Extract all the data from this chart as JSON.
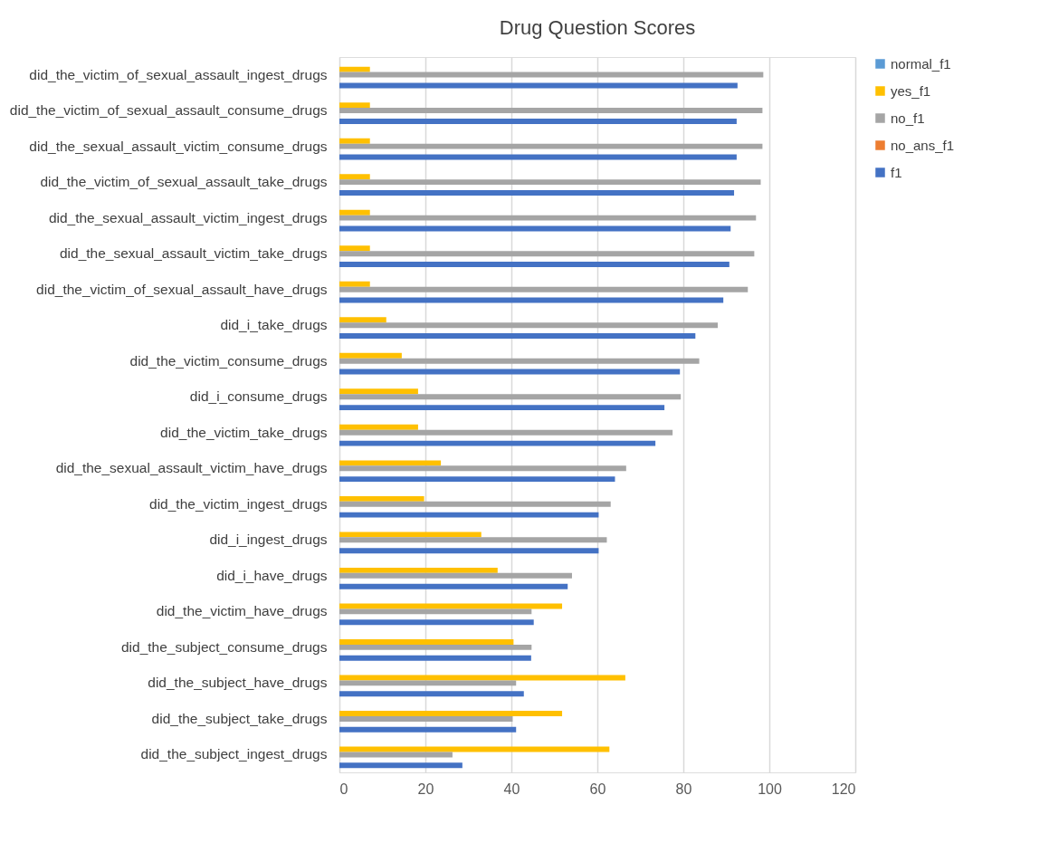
{
  "chart_data": {
    "type": "bar",
    "orientation": "horizontal",
    "title": "Drug Question Scores",
    "categories": [
      "did_the_victim_of_sexual_assault_ingest_drugs",
      "did_the_victim_of_sexual_assault_consume_drugs",
      "did_the_sexual_assault_victim_consume_drugs",
      "did_the_victim_of_sexual_assault_take_drugs",
      "did_the_sexual_assault_victim_ingest_drugs",
      "did_the_sexual_assault_victim_take_drugs",
      "did_the_victim_of_sexual_assault_have_drugs",
      "did_i_take_drugs",
      "did_the_victim_consume_drugs",
      "did_i_consume_drugs",
      "did_the_victim_take_drugs",
      "did_the_sexual_assault_victim_have_drugs",
      "did_the_victim_ingest_drugs",
      "did_i_ingest_drugs",
      "did_i_have_drugs",
      "did_the_victim_have_drugs",
      "did_the_subject_consume_drugs",
      "did_the_subject_have_drugs",
      "did_the_subject_take_drugs",
      "did_the_subject_ingest_drugs"
    ],
    "series": [
      {
        "name": "normal_f1",
        "color": "#5b9bd5",
        "values": [
          null,
          null,
          null,
          null,
          null,
          null,
          null,
          null,
          null,
          null,
          null,
          null,
          null,
          null,
          null,
          null,
          null,
          null,
          null,
          null
        ]
      },
      {
        "name": "yes_f1",
        "color": "#ffc000",
        "values": [
          7.1,
          7.1,
          7.1,
          7.1,
          7.1,
          7.1,
          7.1,
          10.9,
          14.5,
          18.3,
          18.3,
          23.6,
          19.7,
          33.0,
          36.8,
          51.8,
          40.5,
          66.5,
          51.8,
          62.8
        ]
      },
      {
        "name": "no_f1",
        "color": "#a5a5a5",
        "values": [
          98.6,
          98.4,
          98.4,
          98.0,
          96.9,
          96.5,
          95.0,
          88.0,
          83.7,
          79.4,
          77.5,
          66.7,
          63.1,
          62.2,
          54.1,
          44.7,
          44.7,
          41.1,
          40.3,
          26.3
        ]
      },
      {
        "name": "no_ans_f1",
        "color": "#ed7d31",
        "values": [
          null,
          null,
          null,
          null,
          null,
          null,
          null,
          null,
          null,
          null,
          null,
          null,
          null,
          null,
          null,
          null,
          null,
          null,
          null,
          null
        ]
      },
      {
        "name": "f1",
        "color": "#4472c4",
        "values": [
          92.6,
          92.4,
          92.4,
          91.8,
          91.0,
          90.7,
          89.3,
          82.8,
          79.2,
          75.6,
          73.5,
          64.1,
          60.3,
          60.3,
          53.1,
          45.2,
          44.6,
          42.9,
          41.1,
          28.6
        ]
      }
    ],
    "xlim": [
      0,
      120
    ],
    "xticks": [
      0,
      20,
      40,
      60,
      80,
      100,
      120
    ],
    "grid": "x",
    "legend": "right"
  }
}
